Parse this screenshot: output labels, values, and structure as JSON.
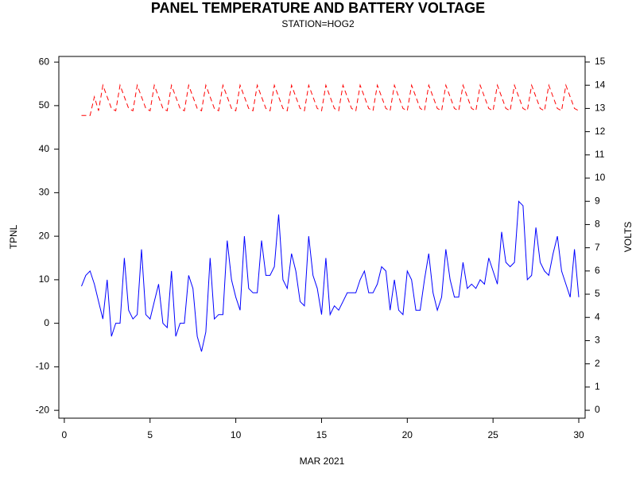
{
  "chart_data": {
    "type": "line",
    "title": "PANEL TEMPERATURE AND BATTERY VOLTAGE",
    "subtitle": "STATION=HOG2",
    "x_label": "MAR 2021",
    "y_label": "TPNL",
    "y2_label": "VOLTS",
    "x": [
      1,
      1.25,
      1.5,
      1.75,
      2,
      2.25,
      2.5,
      2.75,
      3,
      3.25,
      3.5,
      3.75,
      4,
      4.25,
      4.5,
      4.75,
      5,
      5.25,
      5.5,
      5.75,
      6,
      6.25,
      6.5,
      6.75,
      7,
      7.25,
      7.5,
      7.75,
      8,
      8.25,
      8.5,
      8.75,
      9,
      9.25,
      9.5,
      9.75,
      10,
      10.25,
      10.5,
      10.75,
      11,
      11.25,
      11.5,
      11.75,
      12,
      12.25,
      12.5,
      12.75,
      13,
      13.25,
      13.5,
      13.75,
      14,
      14.25,
      14.5,
      14.75,
      15,
      15.25,
      15.5,
      15.75,
      16,
      16.25,
      16.5,
      16.75,
      17,
      17.25,
      17.5,
      17.75,
      18,
      18.25,
      18.5,
      18.75,
      19,
      19.25,
      19.5,
      19.75,
      20,
      20.25,
      20.5,
      20.75,
      21,
      21.25,
      21.5,
      21.75,
      22,
      22.25,
      22.5,
      22.75,
      23,
      23.25,
      23.5,
      23.75,
      24,
      24.25,
      24.5,
      24.75,
      25,
      25.25,
      25.5,
      25.75,
      26,
      26.25,
      26.5,
      26.75,
      27,
      27.25,
      27.5,
      27.75,
      28,
      28.25,
      28.5,
      28.75,
      29,
      29.25,
      29.5,
      29.75,
      30
    ],
    "series": [
      {
        "name": "TPNL",
        "color": "#0000ff",
        "dash": false,
        "axis": "y",
        "values": [
          8.5,
          11,
          12,
          9,
          5,
          1,
          10,
          -3,
          0,
          0,
          15,
          3,
          1,
          2,
          17,
          2,
          1,
          5,
          9,
          0,
          -1,
          12,
          -3,
          0,
          0,
          11,
          8,
          -3,
          -6.5,
          -2,
          15,
          1,
          2,
          2,
          19,
          10,
          6,
          3,
          20,
          8,
          7,
          7,
          19,
          11,
          11,
          13,
          25,
          10,
          8,
          16,
          12,
          5,
          4,
          20,
          11,
          8,
          2,
          15,
          2,
          4,
          3,
          5,
          7,
          7,
          7,
          10,
          12,
          7,
          7,
          9,
          13,
          12,
          3,
          10,
          3,
          2,
          12,
          10,
          3,
          3,
          10,
          16,
          7,
          3,
          6,
          17,
          10,
          6,
          6,
          14,
          8,
          9,
          8,
          10,
          9,
          15,
          12,
          9,
          21,
          14,
          13,
          14,
          28,
          27,
          10,
          11,
          22,
          14,
          12,
          11,
          16,
          20,
          12,
          9,
          6,
          17,
          6
        ]
      },
      {
        "name": "VOLTS",
        "color": "#ff0000",
        "dash": true,
        "axis": "y2",
        "values": [
          12.7,
          12.7,
          12.7,
          13.5,
          12.9,
          14.0,
          13.5,
          13.0,
          12.9,
          14.0,
          13.5,
          13.0,
          12.9,
          14.0,
          13.5,
          13.0,
          12.9,
          14.0,
          13.5,
          13.0,
          12.9,
          14.0,
          13.5,
          13.0,
          12.9,
          14.0,
          13.5,
          13.0,
          12.9,
          14.0,
          13.5,
          13.0,
          12.9,
          14.0,
          13.5,
          13.0,
          12.9,
          14.0,
          13.5,
          13.0,
          12.9,
          14.0,
          13.5,
          13.0,
          12.9,
          14.0,
          13.5,
          13.0,
          12.9,
          14.0,
          13.5,
          13.0,
          12.9,
          14.0,
          13.5,
          13.0,
          12.9,
          14.0,
          13.5,
          13.0,
          12.9,
          14.0,
          13.5,
          13.0,
          12.9,
          14.0,
          13.5,
          13.0,
          12.9,
          14.0,
          13.5,
          13.0,
          12.9,
          14.0,
          13.5,
          13.0,
          12.9,
          14.0,
          13.5,
          13.0,
          12.9,
          14.0,
          13.5,
          13.0,
          12.9,
          14.0,
          13.5,
          13.0,
          12.9,
          14.0,
          13.5,
          13.0,
          12.9,
          14.0,
          13.5,
          13.0,
          12.9,
          14.0,
          13.5,
          13.0,
          12.9,
          14.0,
          13.5,
          13.0,
          12.9,
          14.0,
          13.5,
          13.0,
          12.9,
          14.0,
          13.5,
          13.0,
          12.9,
          14.0,
          13.5,
          13.0,
          12.9
        ]
      }
    ],
    "xlim": [
      -0.32,
      30.37
    ],
    "xticks": [
      0,
      5,
      10,
      15,
      20,
      25,
      30
    ],
    "ylim": [
      -21.8,
      61.3
    ],
    "yticks": [
      -20,
      -10,
      0,
      10,
      20,
      30,
      40,
      50,
      60
    ],
    "y2lim": [
      -0.34,
      15.24
    ],
    "y2ticks": [
      0,
      1,
      2,
      3,
      4,
      5,
      6,
      7,
      8,
      9,
      10,
      11,
      12,
      13,
      14,
      15
    ],
    "grid": false
  }
}
